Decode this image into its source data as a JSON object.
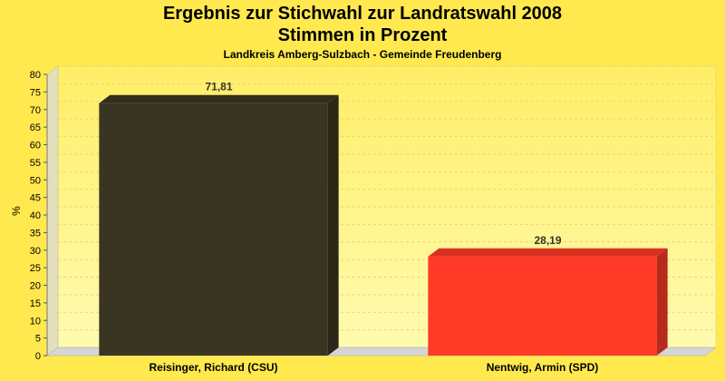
{
  "chart_data": {
    "type": "bar",
    "title": "Ergebnis zur Stichwahl zur Landratswahl 2008",
    "title_line2": "Stimmen in Prozent",
    "subtitle": "Landkreis Amberg-Sulzbach - Gemeinde Freudenberg",
    "ylabel": "%",
    "xlabel": "",
    "ylim": [
      0,
      80
    ],
    "ytick_step": 5,
    "grid": true,
    "categories": [
      "Reisinger, Richard (CSU)",
      "Nentwig, Armin (SPD)"
    ],
    "values": [
      71.81,
      28.19
    ],
    "value_labels": [
      "71,81",
      "28,19"
    ],
    "colors": [
      "#3a3522",
      "#ff3a26"
    ]
  },
  "colors": {
    "background": "#ffe94f",
    "plot_top": "#ffee66",
    "plot_bottom": "#fffbb0"
  }
}
